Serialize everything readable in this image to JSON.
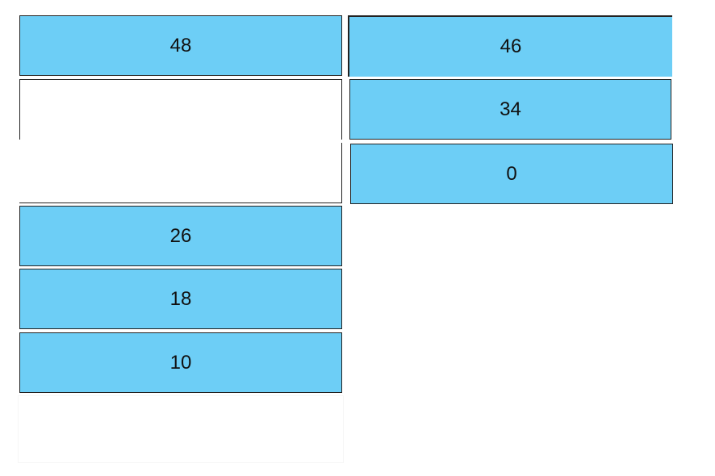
{
  "left_column": [
    48,
    26,
    18,
    10
  ],
  "right_column": [
    46,
    34,
    0
  ]
}
